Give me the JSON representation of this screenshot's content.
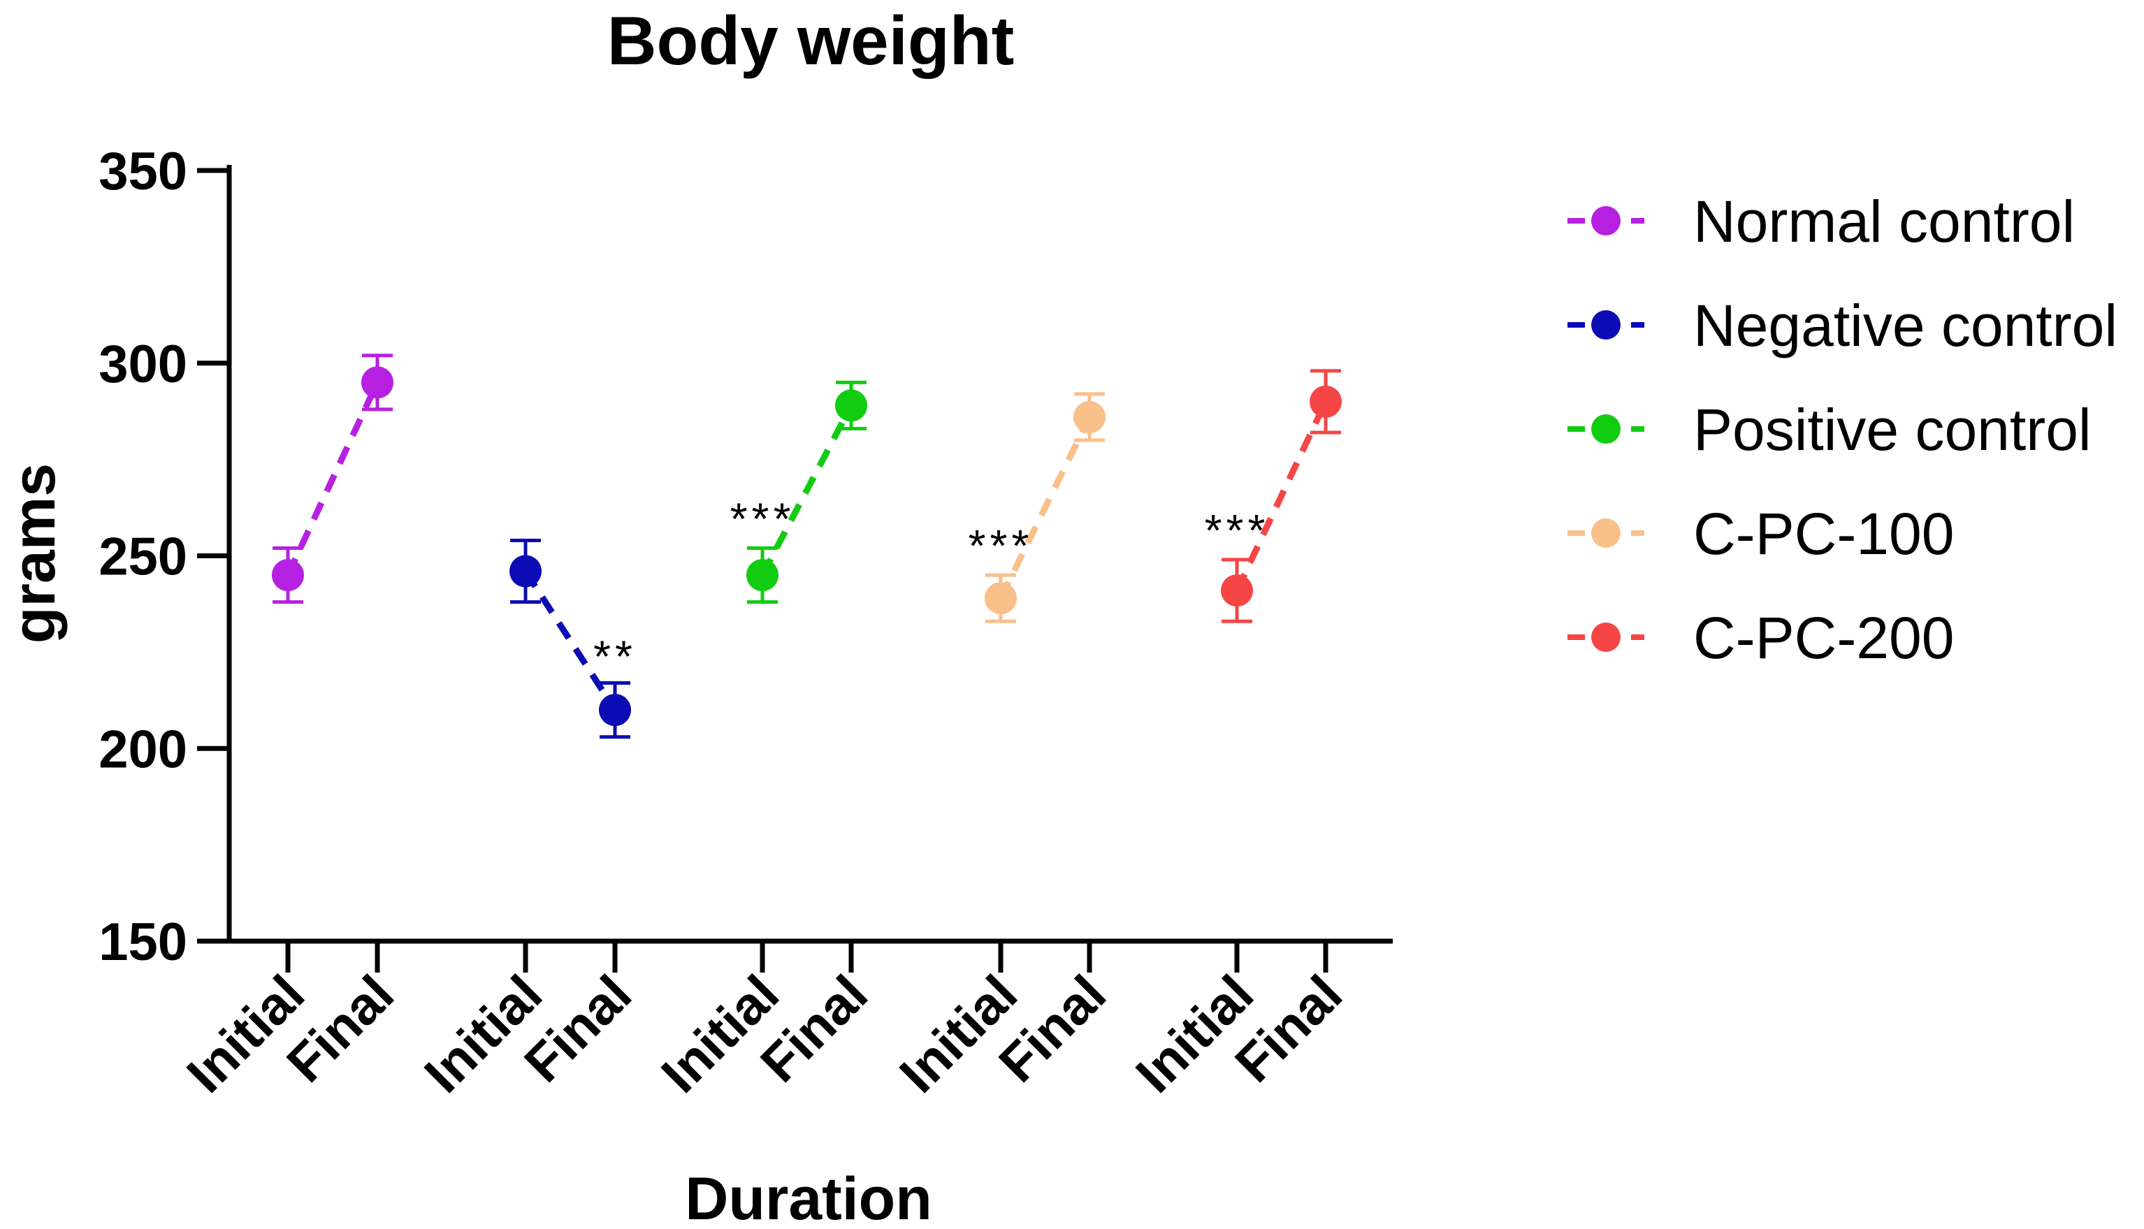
{
  "chart_data": {
    "type": "line",
    "title": "Body weight",
    "xlabel": "Duration",
    "ylabel": "grams",
    "ylim": [
      150,
      350
    ],
    "yticks": [
      "150",
      "200",
      "250",
      "300",
      "350"
    ],
    "grid": false,
    "legend_position": "right",
    "series": [
      {
        "name": "Normal control",
        "color": "#B620E0",
        "categories": [
          "Initial",
          "Final"
        ],
        "values": [
          245,
          295
        ],
        "errors": [
          7,
          7
        ],
        "annotation": ""
      },
      {
        "name": "Negative control",
        "color": "#0C0CB4",
        "categories": [
          "Initial",
          "Final"
        ],
        "values": [
          246,
          210
        ],
        "errors": [
          8,
          7
        ],
        "annotation": "**"
      },
      {
        "name": "Positive control",
        "color": "#12CC12",
        "categories": [
          "Initial",
          "Final"
        ],
        "values": [
          245,
          289
        ],
        "errors": [
          7,
          6
        ],
        "annotation": "***"
      },
      {
        "name": "C-PC-100",
        "color": "#F9C08A",
        "categories": [
          "Initial",
          "Final"
        ],
        "values": [
          239,
          286
        ],
        "errors": [
          6,
          6
        ],
        "annotation": "***"
      },
      {
        "name": "C-PC-200",
        "color": "#F64545",
        "categories": [
          "Initial",
          "Final"
        ],
        "values": [
          241,
          290
        ],
        "errors": [
          8,
          8
        ],
        "annotation": "***"
      }
    ]
  }
}
